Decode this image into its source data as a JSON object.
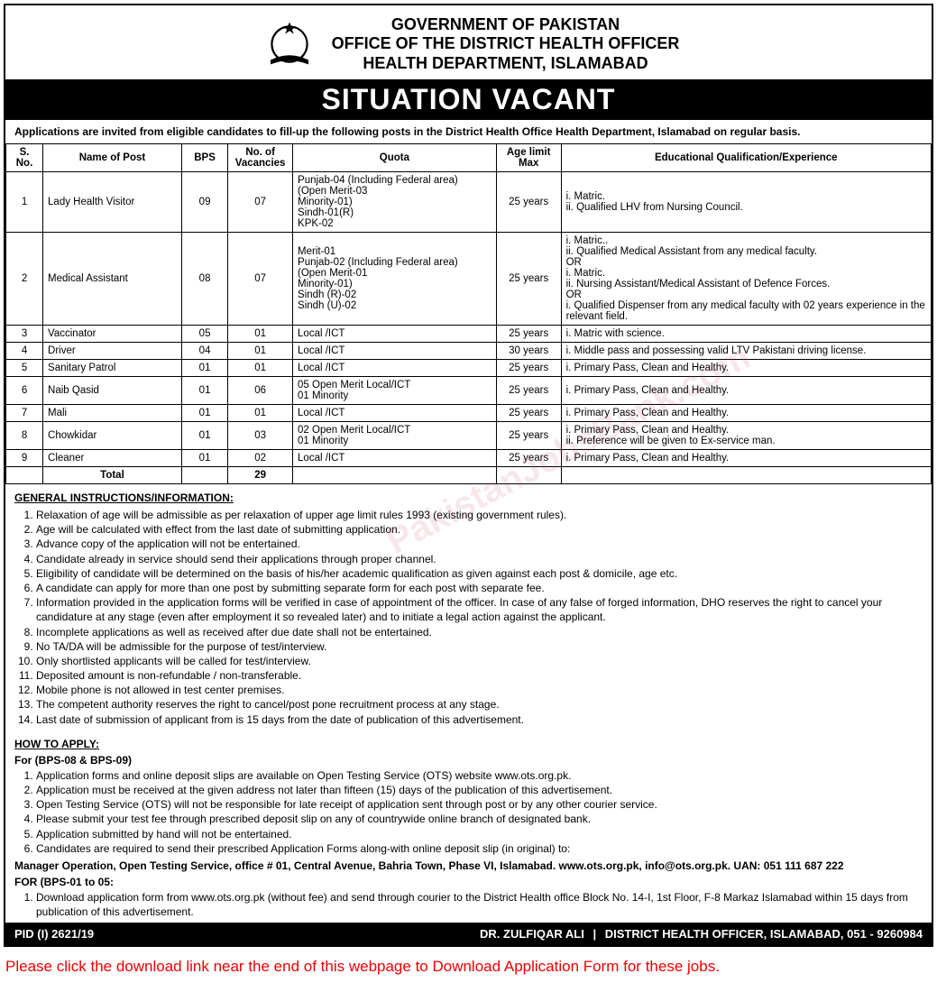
{
  "header": {
    "line1": "GOVERNMENT OF PAKISTAN",
    "line2": "OFFICE OF THE DISTRICT HEALTH OFFICER",
    "line3": "HEALTH DEPARTMENT, ISLAMABAD",
    "banner": "SITUATION VACANT",
    "intro": "Applications are invited from eligible candidates to fill-up the following posts in the District Health Office Health Department, Islamabad on regular basis."
  },
  "table": {
    "columns": [
      "S. No.",
      "Name of Post",
      "BPS",
      "No. of Vacancies",
      "Quota",
      "Age limit Max",
      "Educational Qualification/Experience"
    ],
    "col_widths": [
      "4%",
      "15%",
      "5%",
      "7%",
      "22%",
      "7%",
      "40%"
    ],
    "rows": [
      {
        "sno": "1",
        "post": "Lady Health Visitor",
        "bps": "09",
        "vac": "07",
        "quota": "Punjab-04 (Including Federal area)\n(Open Merit-03\nMinority-01)\nSindh-01(R)\nKPK-02",
        "age": "25 years",
        "qual": "i. Matric.\nii. Qualified LHV from Nursing Council."
      },
      {
        "sno": "2",
        "post": "Medical Assistant",
        "bps": "08",
        "vac": "07",
        "quota": "Merit-01\nPunjab-02 (Including Federal area)\n(Open Merit-01\nMinority-01)\nSindh (R)-02\nSindh (U)-02",
        "age": "25 years",
        "qual": "i. Matric..\nii. Qualified Medical Assistant from any medical faculty.\nOR\ni. Matric.\nii. Nursing Assistant/Medical Assistant of Defence Forces.\nOR\ni. Qualified Dispenser from any medical faculty with 02 years experience in the relevant field."
      },
      {
        "sno": "3",
        "post": "Vaccinator",
        "bps": "05",
        "vac": "01",
        "quota": "Local /ICT",
        "age": "25 years",
        "qual": "i. Matric with science."
      },
      {
        "sno": "4",
        "post": "Driver",
        "bps": "04",
        "vac": "01",
        "quota": "Local /ICT",
        "age": "30 years",
        "qual": "i. Middle pass and possessing valid LTV Pakistani driving license."
      },
      {
        "sno": "5",
        "post": "Sanitary Patrol",
        "bps": "01",
        "vac": "01",
        "quota": "Local /ICT",
        "age": "25 years",
        "qual": "i. Primary Pass, Clean and Healthy."
      },
      {
        "sno": "6",
        "post": "Naib Qasid",
        "bps": "01",
        "vac": "06",
        "quota": "05 Open Merit Local/ICT\n01 Minority",
        "age": "25 years",
        "qual": "i. Primary Pass, Clean and Healthy."
      },
      {
        "sno": "7",
        "post": "Mali",
        "bps": "01",
        "vac": "01",
        "quota": "Local /ICT",
        "age": "25 years",
        "qual": "i. Primary Pass, Clean and Healthy."
      },
      {
        "sno": "8",
        "post": "Chowkidar",
        "bps": "01",
        "vac": "03",
        "quota": "02 Open Merit Local/ICT\n01 Minority",
        "age": "25 years",
        "qual": "i. Primary Pass, Clean and Healthy.\nii. Preference will be given to Ex-service man."
      },
      {
        "sno": "9",
        "post": "Cleaner",
        "bps": "01",
        "vac": "02",
        "quota": "Local /ICT",
        "age": "25 years",
        "qual": "i. Primary Pass, Clean and Healthy."
      }
    ],
    "total_label": "Total",
    "total_value": "29"
  },
  "instructions": {
    "title": "GENERAL INSTRUCTIONS/INFORMATION:",
    "items": [
      "Relaxation of age will be admissible as per relaxation of upper age limit rules 1993 (existing government rules).",
      "Age will be calculated with effect from the last date of submitting application.",
      "Advance copy of the application will not be entertained.",
      "Candidate already in service should send their applications through proper channel.",
      "Eligibility of candidate will be determined on the basis of his/her academic qualification as given against each post & domicile, age etc.",
      "A candidate can apply for more than one post by submitting separate form for each post with separate fee.",
      "Information provided in the application forms will be verified in case of appointment of the officer. In case of any false of forged information, DHO reserves the right to cancel your candidature at any stage (even after employment it so revealed later) and to initiate a legal action against the applicant.",
      "Incomplete applications as well as received after due date shall not be entertained.",
      "No TA/DA will be admissible for the purpose of test/interview.",
      "Only shortlisted applicants will be called for test/interview.",
      "Deposited amount is non-refundable / non-transferable.",
      "Mobile phone is not allowed in test center premises.",
      "The competent authority reserves the right to cancel/post pone recruitment process at any stage.",
      "Last date of submission of applicant from is 15 days from the date of publication of this advertisement."
    ]
  },
  "apply": {
    "title": "HOW TO APPLY:",
    "sectionA": {
      "heading": "For (BPS-08 & BPS-09)",
      "items": [
        "Application forms and online deposit slips are available on Open Testing Service (OTS) website www.ots.org.pk.",
        "Application must be received at the given address not later than fifteen (15) days of the publication of this advertisement.",
        "Open Testing Service (OTS) will not be responsible for late receipt of application sent through post or by any other courier service.",
        "Please submit your test fee through prescribed deposit slip on any of countrywide online branch of designated bank.",
        "Application submitted by hand will not be entertained.",
        "Candidates are required to send their prescribed Application Forms along-with online deposit slip (in original) to:"
      ],
      "address": "Manager Operation, Open Testing Service, office # 01, Central Avenue, Bahria Town, Phase VI, Islamabad. www.ots.org.pk, info@ots.org.pk. UAN: 051 111 687 222"
    },
    "sectionB": {
      "heading": "FOR (BPS-01 to 05:",
      "items": [
        "Download application form from www.ots.org.pk (without fee) and send through courier to the District Health office Block No. 14-I, 1st Floor, F-8 Markaz Islamabad within 15 days from publication of this advertisement."
      ]
    }
  },
  "footer": {
    "pid": "PID (I) 2621/19",
    "name": "DR. ZULFIQAR ALI",
    "title": "DISTRICT HEALTH OFFICER, ISLAMABAD,",
    "phone": "051 - 9260984"
  },
  "download_note": "Please click the download link near the end of this webpage to Download Application Form for these jobs.",
  "watermark": "PakistanJobsBank.com",
  "colors": {
    "accent": "#000000",
    "background": "#ffffff",
    "note": "#e00000"
  }
}
